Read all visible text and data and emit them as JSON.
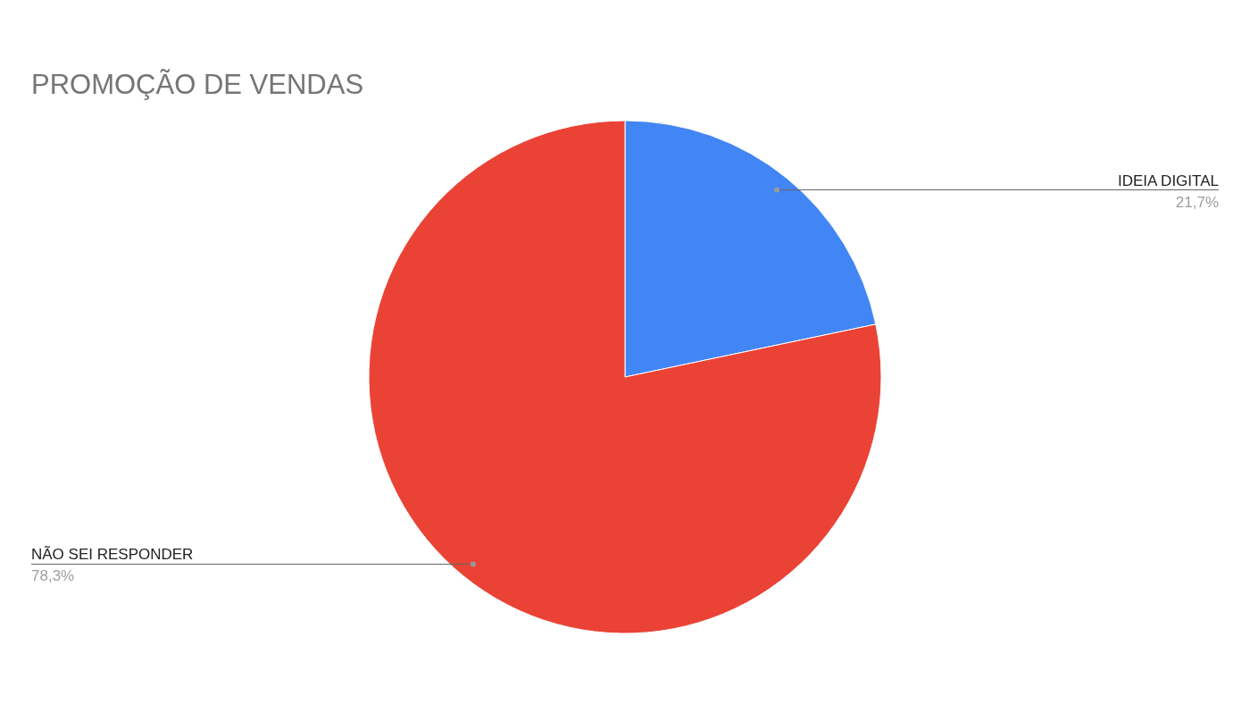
{
  "chart_data": {
    "type": "pie",
    "title": "PROMOÇÃO DE VENDAS",
    "categories": [
      "IDEIA DIGITAL",
      "NÃO SEI RESPONDER"
    ],
    "values": [
      21.7,
      78.3
    ],
    "colors": [
      "#4285f4",
      "#ea4335"
    ],
    "value_labels": [
      "21,7%",
      "78,3%"
    ]
  }
}
